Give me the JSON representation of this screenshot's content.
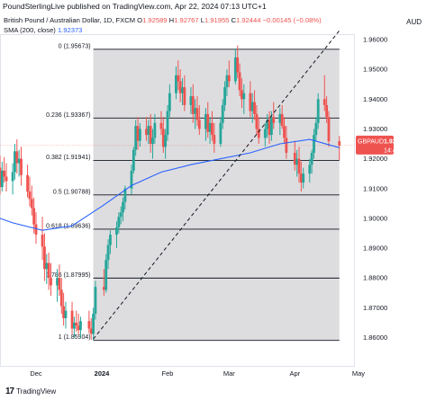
{
  "header": {
    "publish_line": "PoundSterlingLive published on TradingView.com, Apr 22, 2024 07:13 UTC+1",
    "currency": "AUD",
    "title": "British Pound / Australian Dollar, 1D, FXCM",
    "ohlc": {
      "o_label": "O",
      "o_value": "1.92589",
      "h_label": "H",
      "h_value": "1.92767",
      "l_label": "L",
      "l_value": "1.91955",
      "c_label": "C",
      "c_value": "1.92444",
      "change": "−0.00145 (−0.08%)"
    },
    "sma_label": "SMA (200, close)",
    "sma_value": "1.92373"
  },
  "footer": {
    "logo": "17",
    "brand": "TradingView"
  },
  "colors": {
    "up": "#26a69a",
    "down": "#ef5350",
    "sma": "#2962ff",
    "fib_fill": "#d7d7d9",
    "fib_line": "#131722",
    "tag_bg": "#ef5350"
  },
  "chart_data": {
    "type": "candlestick",
    "symbol": "GBPAUD",
    "ylim": [
      1.855,
      1.965
    ],
    "y_ticks": [
      "1.96000",
      "1.95000",
      "1.94000",
      "1.93000",
      "1.92000",
      "1.91000",
      "1.90000",
      "1.89000",
      "1.88000",
      "1.87000",
      "1.86000"
    ],
    "x_tick_labels": [
      "Dec",
      "2024",
      "Feb",
      "Mar",
      "Apr",
      "May"
    ],
    "price_tag": {
      "label": "GBPAUD",
      "value": "1.92444",
      "countdown": "14:46:25"
    },
    "fib_levels": [
      {
        "ratio": "0",
        "value": "1.95673",
        "price": 1.95673
      },
      {
        "ratio": "0.236",
        "value": "1.93367",
        "price": 1.93367
      },
      {
        "ratio": "0.382",
        "value": "1.91941",
        "price": 1.91941
      },
      {
        "ratio": "0.5",
        "value": "1.90788",
        "price": 1.90788
      },
      {
        "ratio": "0.618",
        "value": "1.89636",
        "price": 1.89636
      },
      {
        "ratio": "0.786",
        "value": "1.87995",
        "price": 1.87995
      },
      {
        "ratio": "1",
        "value": "1.85904",
        "price": 1.85904
      }
    ],
    "trend_line": {
      "from": {
        "date": "2023-12-28",
        "price": 1.8595
      },
      "to": {
        "date": "2024-04-22",
        "price": 1.963
      }
    },
    "sma_200": [
      [
        "2023-11-06",
        1.902
      ],
      [
        "2023-11-20",
        1.8985
      ],
      [
        "2023-12-04",
        1.896
      ],
      [
        "2023-12-18",
        1.8975
      ],
      [
        "2024-01-01",
        1.904
      ],
      [
        "2024-01-15",
        1.911
      ],
      [
        "2024-01-29",
        1.9155
      ],
      [
        "2024-02-12",
        1.918
      ],
      [
        "2024-02-26",
        1.92
      ],
      [
        "2024-03-11",
        1.922
      ],
      [
        "2024-03-25",
        1.925
      ],
      [
        "2024-04-08",
        1.9265
      ],
      [
        "2024-04-22",
        1.9237
      ]
    ],
    "candles": [
      [
        "2023-11-06",
        1.912,
        1.9185,
        1.907,
        1.9155
      ],
      [
        "2023-11-07",
        1.9155,
        1.921,
        1.909,
        1.911
      ],
      [
        "2023-11-08",
        1.911,
        1.9175,
        1.906,
        1.914
      ],
      [
        "2023-11-09",
        1.914,
        1.9195,
        1.9085,
        1.91
      ],
      [
        "2023-11-10",
        1.91,
        1.9165,
        1.905,
        1.9135
      ],
      [
        "2023-11-13",
        1.9135,
        1.92,
        1.91,
        1.917
      ],
      [
        "2023-11-14",
        1.917,
        1.921,
        1.908,
        1.9105
      ],
      [
        "2023-11-15",
        1.9105,
        1.919,
        1.909,
        1.916
      ],
      [
        "2023-11-16",
        1.916,
        1.9205,
        1.912,
        1.914
      ],
      [
        "2023-11-17",
        1.914,
        1.9185,
        1.909,
        1.9125
      ],
      [
        "2023-11-20",
        1.9125,
        1.9185,
        1.908,
        1.9155
      ],
      [
        "2023-11-21",
        1.9155,
        1.925,
        1.913,
        1.9225
      ],
      [
        "2023-11-22",
        1.9225,
        1.9265,
        1.915,
        1.9185
      ],
      [
        "2023-11-23",
        1.9185,
        1.923,
        1.914,
        1.92
      ],
      [
        "2023-11-24",
        1.92,
        1.924,
        1.911,
        1.9145
      ],
      [
        "2023-11-27",
        1.9145,
        1.918,
        1.907,
        1.909
      ],
      [
        "2023-11-28",
        1.909,
        1.914,
        1.904,
        1.9065
      ],
      [
        "2023-11-29",
        1.9065,
        1.911,
        1.901,
        1.9035
      ],
      [
        "2023-11-30",
        1.9035,
        1.907,
        1.895,
        1.898
      ],
      [
        "2023-12-01",
        1.898,
        1.902,
        1.8915,
        1.8945
      ],
      [
        "2023-12-04",
        1.8945,
        1.9005,
        1.886,
        1.8905
      ],
      [
        "2023-12-05",
        1.8905,
        1.895,
        1.879,
        1.883
      ],
      [
        "2023-12-06",
        1.883,
        1.888,
        1.878,
        1.885
      ],
      [
        "2023-12-07",
        1.885,
        1.8885,
        1.876,
        1.88
      ],
      [
        "2023-12-08",
        1.88,
        1.885,
        1.874,
        1.8775
      ],
      [
        "2023-12-11",
        1.8775,
        1.883,
        1.872,
        1.88
      ],
      [
        "2023-12-12",
        1.88,
        1.8845,
        1.874,
        1.876
      ],
      [
        "2023-12-13",
        1.876,
        1.88,
        1.868,
        1.8705
      ],
      [
        "2023-12-14",
        1.8705,
        1.875,
        1.864,
        1.8665
      ],
      [
        "2023-12-15",
        1.8665,
        1.872,
        1.863,
        1.869
      ],
      [
        "2023-12-18",
        1.869,
        1.872,
        1.861,
        1.863
      ],
      [
        "2023-12-19",
        1.863,
        1.867,
        1.86,
        1.865
      ],
      [
        "2023-12-20",
        1.865,
        1.869,
        1.862,
        1.864
      ],
      [
        "2023-12-21",
        1.864,
        1.868,
        1.861,
        1.8625
      ],
      [
        "2023-12-22",
        1.8625,
        1.867,
        1.86,
        1.8655
      ],
      [
        "2023-12-26",
        1.8655,
        1.869,
        1.8615,
        1.863
      ],
      [
        "2023-12-27",
        1.863,
        1.8665,
        1.8592,
        1.8612
      ],
      [
        "2023-12-28",
        1.8612,
        1.87,
        1.859,
        1.868
      ],
      [
        "2023-12-29",
        1.868,
        1.879,
        1.866,
        1.877
      ],
      [
        "2024-01-02",
        1.877,
        1.883,
        1.874,
        1.876
      ],
      [
        "2024-01-03",
        1.876,
        1.888,
        1.875,
        1.886
      ],
      [
        "2024-01-04",
        1.886,
        1.893,
        1.883,
        1.891
      ],
      [
        "2024-01-05",
        1.891,
        1.896,
        1.888,
        1.8945
      ],
      [
        "2024-01-08",
        1.8945,
        1.899,
        1.89,
        1.897
      ],
      [
        "2024-01-09",
        1.897,
        1.902,
        1.895,
        1.9005
      ],
      [
        "2024-01-10",
        1.9005,
        1.904,
        1.898,
        1.902
      ],
      [
        "2024-01-11",
        1.902,
        1.907,
        1.899,
        1.9055
      ],
      [
        "2024-01-12",
        1.9055,
        1.911,
        1.903,
        1.91
      ],
      [
        "2024-01-15",
        1.91,
        1.918,
        1.908,
        1.916
      ],
      [
        "2024-01-16",
        1.916,
        1.924,
        1.915,
        1.923
      ],
      [
        "2024-01-17",
        1.923,
        1.933,
        1.921,
        1.931
      ],
      [
        "2024-01-18",
        1.931,
        1.934,
        1.923,
        1.926
      ],
      [
        "2024-01-19",
        1.926,
        1.932,
        1.924,
        1.93
      ],
      [
        "2024-01-22",
        1.93,
        1.934,
        1.926,
        1.928
      ],
      [
        "2024-01-23",
        1.928,
        1.933,
        1.925,
        1.931
      ],
      [
        "2024-01-24",
        1.931,
        1.935,
        1.922,
        1.925
      ],
      [
        "2024-01-25",
        1.925,
        1.93,
        1.92,
        1.927
      ],
      [
        "2024-01-26",
        1.927,
        1.935,
        1.925,
        1.932
      ],
      [
        "2024-01-29",
        1.932,
        1.936,
        1.928,
        1.93
      ],
      [
        "2024-01-30",
        1.93,
        1.934,
        1.922,
        1.924
      ],
      [
        "2024-01-31",
        1.924,
        1.93,
        1.92,
        1.928
      ],
      [
        "2024-02-01",
        1.928,
        1.938,
        1.926,
        1.936
      ],
      [
        "2024-02-02",
        1.936,
        1.945,
        1.934,
        1.942
      ],
      [
        "2024-02-05",
        1.942,
        1.951,
        1.94,
        1.948
      ],
      [
        "2024-02-06",
        1.948,
        1.953,
        1.943,
        1.946
      ],
      [
        "2024-02-07",
        1.946,
        1.95,
        1.939,
        1.942
      ],
      [
        "2024-02-08",
        1.942,
        1.947,
        1.938,
        1.944
      ],
      [
        "2024-02-09",
        1.944,
        1.948,
        1.936,
        1.938
      ],
      [
        "2024-02-12",
        1.938,
        1.944,
        1.935,
        1.941
      ],
      [
        "2024-02-13",
        1.941,
        1.945,
        1.932,
        1.935
      ],
      [
        "2024-02-14",
        1.935,
        1.94,
        1.93,
        1.937
      ],
      [
        "2024-02-15",
        1.937,
        1.941,
        1.931,
        1.933
      ],
      [
        "2024-02-16",
        1.933,
        1.938,
        1.928,
        1.93
      ],
      [
        "2024-02-19",
        1.93,
        1.937,
        1.926,
        1.935
      ],
      [
        "2024-02-20",
        1.935,
        1.939,
        1.927,
        1.929
      ],
      [
        "2024-02-21",
        1.929,
        1.934,
        1.925,
        1.932
      ],
      [
        "2024-02-22",
        1.932,
        1.936,
        1.926,
        1.928
      ],
      [
        "2024-02-23",
        1.928,
        1.932,
        1.922,
        1.925
      ],
      [
        "2024-02-26",
        1.925,
        1.934,
        1.924,
        1.932
      ],
      [
        "2024-02-27",
        1.932,
        1.94,
        1.93,
        1.938
      ],
      [
        "2024-02-28",
        1.938,
        1.946,
        1.936,
        1.944
      ],
      [
        "2024-02-29",
        1.944,
        1.95,
        1.941,
        1.948
      ],
      [
        "2024-03-01",
        1.948,
        1.953,
        1.944,
        1.946
      ],
      [
        "2024-03-04",
        1.946,
        1.957,
        1.945,
        1.954
      ],
      [
        "2024-03-05",
        1.954,
        1.958,
        1.947,
        1.949
      ],
      [
        "2024-03-06",
        1.949,
        1.952,
        1.941,
        1.943
      ],
      [
        "2024-03-07",
        1.943,
        1.947,
        1.937,
        1.94
      ],
      [
        "2024-03-08",
        1.94,
        1.945,
        1.935,
        1.942
      ],
      [
        "2024-03-11",
        1.942,
        1.946,
        1.934,
        1.936
      ],
      [
        "2024-03-12",
        1.936,
        1.942,
        1.932,
        1.939
      ],
      [
        "2024-03-13",
        1.939,
        1.943,
        1.933,
        1.935
      ],
      [
        "2024-03-14",
        1.935,
        1.938,
        1.928,
        1.93
      ],
      [
        "2024-03-15",
        1.93,
        1.934,
        1.925,
        1.927
      ],
      [
        "2024-03-18",
        1.927,
        1.932,
        1.924,
        1.93
      ],
      [
        "2024-03-19",
        1.93,
        1.935,
        1.927,
        1.933
      ],
      [
        "2024-03-20",
        1.933,
        1.936,
        1.925,
        1.928
      ],
      [
        "2024-03-21",
        1.928,
        1.936,
        1.926,
        1.934
      ],
      [
        "2024-03-22",
        1.934,
        1.939,
        1.93,
        1.932
      ],
      [
        "2024-03-25",
        1.932,
        1.937,
        1.928,
        1.935
      ],
      [
        "2024-03-26",
        1.935,
        1.938,
        1.93,
        1.931
      ],
      [
        "2024-03-27",
        1.931,
        1.934,
        1.925,
        1.927
      ],
      [
        "2024-03-28",
        1.927,
        1.931,
        1.92,
        1.922
      ],
      [
        "2024-04-01",
        1.922,
        1.926,
        1.916,
        1.918
      ],
      [
        "2024-04-02",
        1.918,
        1.923,
        1.914,
        1.92
      ],
      [
        "2024-04-03",
        1.92,
        1.924,
        1.912,
        1.915
      ],
      [
        "2024-04-04",
        1.915,
        1.919,
        1.909,
        1.912
      ],
      [
        "2024-04-05",
        1.912,
        1.917,
        1.91,
        1.915
      ],
      [
        "2024-04-08",
        1.915,
        1.92,
        1.912,
        1.918
      ],
      [
        "2024-04-09",
        1.918,
        1.923,
        1.915,
        1.922
      ],
      [
        "2024-04-10",
        1.922,
        1.93,
        1.92,
        1.928
      ],
      [
        "2024-04-11",
        1.928,
        1.934,
        1.926,
        1.932
      ],
      [
        "2024-04-12",
        1.932,
        1.942,
        1.93,
        1.94
      ],
      [
        "2024-04-15",
        1.94,
        1.948,
        1.936,
        1.938
      ],
      [
        "2024-04-16",
        1.938,
        1.941,
        1.932,
        1.934
      ],
      [
        "2024-04-17",
        1.934,
        1.936,
        1.924,
        1.9259
      ],
      [
        "2024-04-22",
        1.92589,
        1.92767,
        1.91955,
        1.92444
      ]
    ]
  }
}
